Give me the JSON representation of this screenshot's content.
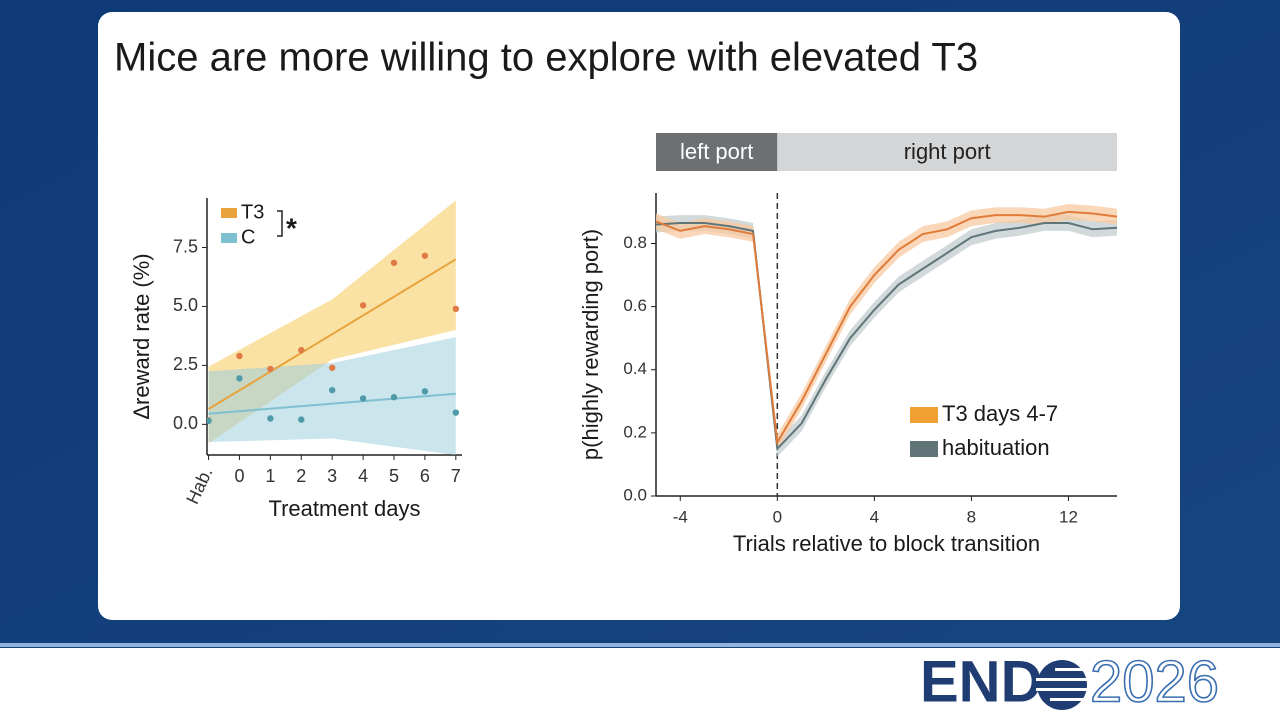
{
  "slide_title": "Mice are more willing to explore with elevated T3",
  "logo": {
    "left": "END",
    "right": "2026"
  },
  "chart_data": [
    {
      "type": "scatter",
      "xlabel": "Treatment days",
      "ylabel": "Δreward rate (%)",
      "annotation": "*",
      "x": [
        -1,
        0,
        1,
        2,
        3,
        4,
        5,
        6,
        7
      ],
      "xlim": [
        -1.05,
        7.2
      ],
      "ylim": [
        -1.3,
        9.6
      ],
      "xticks": [
        {
          "value": -1,
          "label": "Hab."
        },
        0,
        1,
        2,
        3,
        4,
        5,
        6,
        7
      ],
      "yticks": [
        {
          "value": 0,
          "label": "0.0"
        },
        2.5,
        {
          "value": 5,
          "label": "5.0"
        },
        7.5
      ],
      "series": [
        {
          "name": "T3",
          "color": "#e8a33c",
          "point_color": "#e07b45",
          "band_color": "#f5c95a",
          "values": [
            0.17,
            2.9,
            2.35,
            3.15,
            2.4,
            5.05,
            6.85,
            7.15,
            4.9
          ],
          "fit_x": [
            -1,
            7
          ],
          "fit": [
            0.65,
            7.0
          ],
          "band_x": [
            -1,
            3,
            7
          ],
          "band_lower": [
            -0.8,
            2.75,
            4.0
          ],
          "band_upper": [
            2.45,
            5.3,
            9.5
          ]
        },
        {
          "name": "C",
          "color": "#7fc0d0",
          "point_color": "#4f9aa8",
          "band_color": "#9fd0dc",
          "values": [
            0.15,
            1.95,
            0.25,
            0.2,
            1.45,
            1.1,
            1.15,
            1.4,
            0.5
          ],
          "fit_x": [
            -1,
            7
          ],
          "fit": [
            0.45,
            1.3
          ],
          "band_x": [
            -1,
            3,
            7
          ],
          "band_lower": [
            -0.75,
            -0.6,
            -1.3
          ],
          "band_upper": [
            2.25,
            2.6,
            3.7
          ]
        }
      ]
    },
    {
      "type": "line",
      "xlabel": "Trials relative to block transition",
      "ylabel": "p(highly rewarding port)",
      "top_labels": [
        "left port",
        "right port"
      ],
      "vline": 0,
      "x": [
        -5,
        -4,
        -3,
        -2,
        -1,
        0,
        1,
        2,
        3,
        4,
        5,
        6,
        7,
        8,
        9,
        10,
        11,
        12,
        13,
        14
      ],
      "xlim": [
        -5,
        14
      ],
      "ylim": [
        0,
        0.96
      ],
      "xticks": [
        -4,
        0,
        4,
        8,
        12
      ],
      "yticks": [
        {
          "value": 0,
          "label": "0.0"
        },
        0.2,
        0.4,
        0.6,
        0.8
      ],
      "series": [
        {
          "name": "T3 days 4-7",
          "color": "#e07b39",
          "band_color": "#f7c9a0",
          "legend_color": "#f0a030",
          "error": 0.025,
          "values": [
            0.87,
            0.84,
            0.855,
            0.845,
            0.83,
            0.17,
            0.3,
            0.45,
            0.6,
            0.7,
            0.78,
            0.83,
            0.845,
            0.88,
            0.89,
            0.89,
            0.885,
            0.9,
            0.895,
            0.885
          ]
        },
        {
          "name": "habituation",
          "color": "#5f7579",
          "band_color": "#c3cccd",
          "legend_color": "#607478",
          "error": 0.025,
          "values": [
            0.86,
            0.865,
            0.865,
            0.855,
            0.84,
            0.15,
            0.23,
            0.37,
            0.5,
            0.59,
            0.67,
            0.72,
            0.77,
            0.82,
            0.84,
            0.85,
            0.865,
            0.865,
            0.845,
            0.85
          ]
        }
      ]
    }
  ]
}
